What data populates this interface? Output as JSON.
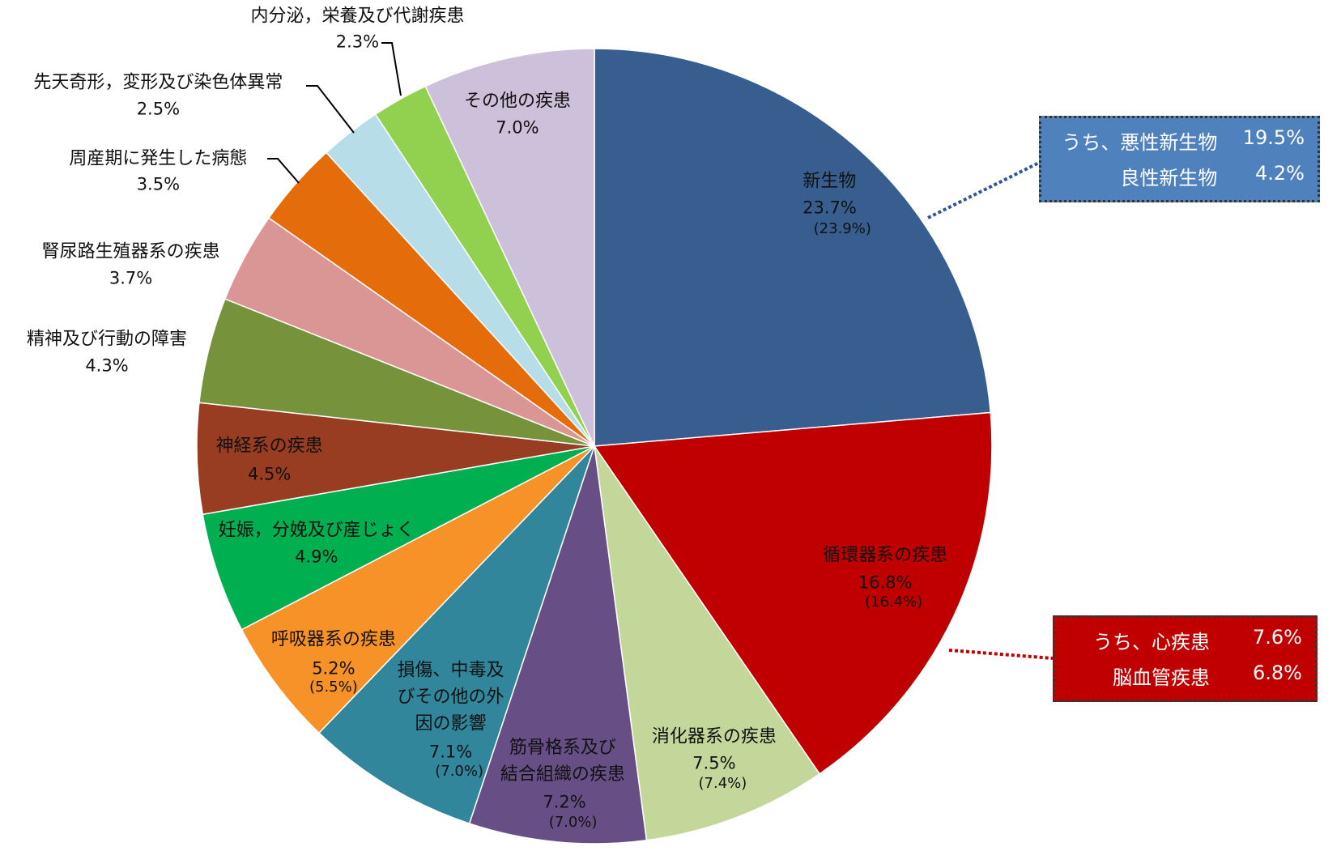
{
  "chart_data": {
    "type": "pie",
    "categories": [
      "新生物",
      "循環器系の疾患",
      "消化器系の疾患",
      "筋骨格系及び\n結合組織の疾患",
      "損傷、中毒及\nびその他の外\n因の影響",
      "呼吸器系の疾患",
      "妊娠，分娩及び産じょく",
      "神経系の疾患",
      "精神及び行動の障害",
      "腎尿路生殖器系の疾患",
      "周産期に発生した病態",
      "先天奇形，変形及び染色体異常",
      "内分泌，栄養及び代謝疾患",
      "その他の疾患"
    ],
    "values": [
      23.7,
      16.8,
      7.5,
      7.2,
      7.1,
      5.2,
      4.9,
      4.5,
      4.3,
      3.7,
      3.5,
      2.5,
      2.3,
      7.0
    ],
    "value_labels": [
      "23.7%",
      "16.8%",
      "7.5%",
      "7.2%",
      "7.1%",
      "5.2%",
      "4.9%",
      "4.5%",
      "4.3%",
      "3.7%",
      "3.5%",
      "2.5%",
      "2.3%",
      "7.0%"
    ],
    "prior_labels": [
      "(23.9%)",
      "(16.4%)",
      "(7.4%)",
      "(7.0%)",
      "(7.0%)",
      "(5.5%)",
      null,
      null,
      null,
      null,
      null,
      null,
      null,
      null
    ],
    "colors": [
      "#375e8f",
      "#c00000",
      "#c4d79b",
      "#674f86",
      "#31869b",
      "#f79229",
      "#00b050",
      "#983c22",
      "#76933c",
      "#da9694",
      "#e46c0a",
      "#b7dde8",
      "#92d050",
      "#ccc0da"
    ],
    "annotations": [
      {
        "color": "#4f81bd",
        "rows": [
          [
            "うち、悪性新生物",
            "19.5%"
          ],
          [
            "良性新生物",
            "4.2%"
          ]
        ]
      },
      {
        "color": "#c00000",
        "rows": [
          [
            "うち、心疾患",
            "7.6%"
          ],
          [
            "脳血管疾患",
            "6.8%"
          ]
        ]
      }
    ]
  }
}
